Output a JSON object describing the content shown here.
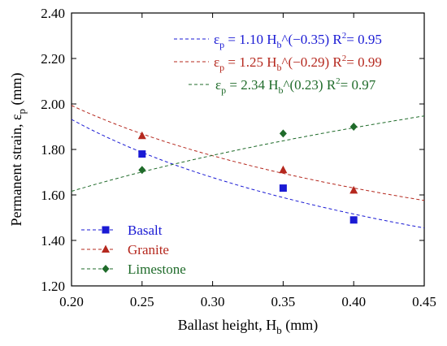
{
  "chart_data": {
    "type": "scatter",
    "xlabel": "Ballast height, H_b (mm)",
    "ylabel": "Permanent strain, ε_p (mm)",
    "xlim": [
      0.2,
      0.45
    ],
    "ylim": [
      1.2,
      2.4
    ],
    "x_ticks": [
      "0.20",
      "0.25",
      "0.30",
      "0.35",
      "0.40",
      "0.45"
    ],
    "y_ticks": [
      "1.20",
      "1.40",
      "1.60",
      "1.80",
      "2.00",
      "2.20",
      "2.40"
    ],
    "legend_position": "bottom-left",
    "grid": false,
    "series": [
      {
        "name": "Basalt",
        "marker": "square",
        "color": "#1a1ad4",
        "points": [
          [
            0.25,
            1.78
          ],
          [
            0.35,
            1.63
          ],
          [
            0.4,
            1.49
          ]
        ],
        "fit": {
          "a": 1.1,
          "b": -0.35,
          "r2": 0.95
        },
        "equation": {
          "lhs": "ε",
          "sub": "p",
          "coef": " = 1.10 H",
          "base_sub": "b",
          "exp": "^(−0.35)",
          "r2_label": "R",
          "r2_sup": "2",
          "r2_value": "= 0.95"
        }
      },
      {
        "name": "Granite",
        "marker": "triangle",
        "color": "#b5281e",
        "points": [
          [
            0.25,
            1.86
          ],
          [
            0.35,
            1.71
          ],
          [
            0.4,
            1.62
          ]
        ],
        "fit": {
          "a": 1.25,
          "b": -0.29,
          "r2": 0.99
        },
        "equation": {
          "lhs": "ε",
          "sub": "p",
          "coef": " = 1.25 H",
          "base_sub": "b",
          "exp": "^(−0.29)",
          "r2_label": "R",
          "r2_sup": "2",
          "r2_value": "= 0.99"
        }
      },
      {
        "name": "Limestone",
        "marker": "diamond",
        "color": "#1f6b2a",
        "points": [
          [
            0.25,
            1.71
          ],
          [
            0.35,
            1.87
          ],
          [
            0.4,
            1.9
          ]
        ],
        "fit": {
          "a": 2.34,
          "b": 0.23,
          "r2": 0.97
        },
        "equation": {
          "lhs": "ε",
          "sub": "p",
          "coef": " = 2.34 H",
          "base_sub": "b",
          "exp": "^(0.23)",
          "r2_label": "R",
          "r2_sup": "2",
          "r2_value": "= 0.97"
        }
      }
    ]
  }
}
